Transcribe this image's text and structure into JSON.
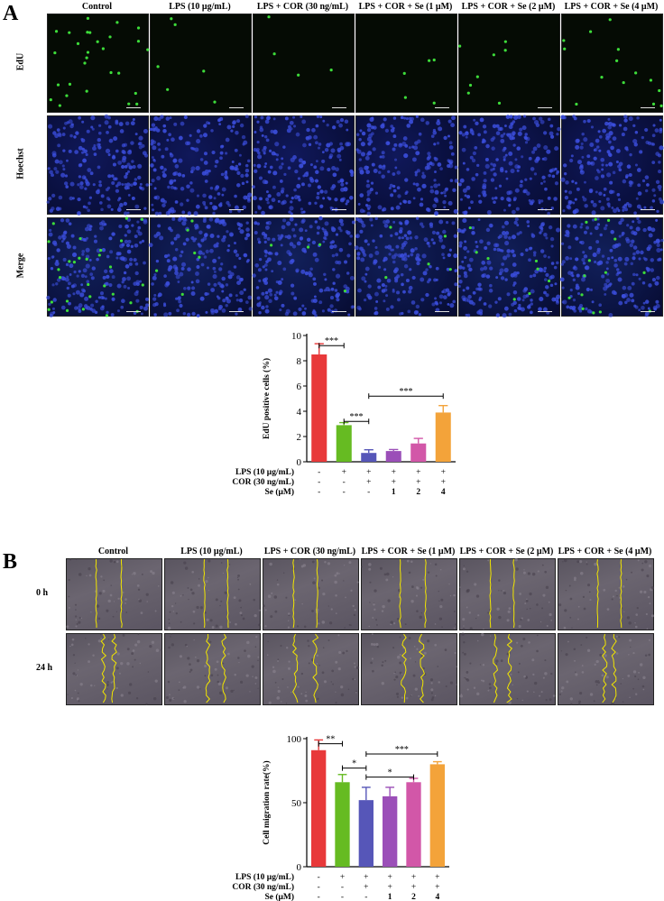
{
  "panel_a": {
    "letter": "A",
    "columns": [
      "Control",
      "LPS (10 μg/mL)",
      "LPS + COR (30 ng/mL)",
      "LPS + COR + Se (1 μM)",
      "LPS + COR + Se (2 μM)",
      "LPS + COR + Se (4 μM)"
    ],
    "rows": [
      "EdU",
      "Hoechst",
      "Merge"
    ],
    "colors": {
      "edu_dot": "#3ddc3a",
      "nuclei": "#3c4fe0"
    }
  },
  "panel_b": {
    "letter": "B",
    "columns": [
      "Control",
      "LPS (10 μg/mL)",
      "LPS + COR (30 ng/mL)",
      "LPS + COR + Se (1 μM)",
      "LPS + COR + Se (2 μM)",
      "LPS + COR + Se (4 μM)"
    ],
    "rows": [
      "0 h",
      "24 h"
    ],
    "colors": {
      "wound_edge": "#f2e600"
    }
  },
  "treatment_labels": [
    "LPS (10 μg/mL)",
    "COR (30 ng/mL)",
    "Se (μM)"
  ],
  "treatment_matrix": [
    [
      "-",
      "+",
      "+",
      "+",
      "+",
      "+"
    ],
    [
      "-",
      "-",
      "+",
      "+",
      "+",
      "+"
    ],
    [
      "-",
      "-",
      "-",
      "1",
      "2",
      "4"
    ]
  ],
  "chart_data": [
    {
      "type": "bar",
      "ylabel": "EdU positive cells (%)",
      "ylim": [
        0,
        10
      ],
      "yticks": [
        0,
        2,
        4,
        6,
        8,
        10
      ],
      "values": [
        8.5,
        2.9,
        0.7,
        0.85,
        1.45,
        3.9
      ],
      "errors": [
        0.85,
        0.2,
        0.25,
        0.12,
        0.4,
        0.55
      ],
      "colors": [
        "#e8393a",
        "#66bb22",
        "#5656b8",
        "#9b4fb8",
        "#d257a8",
        "#f3a33a"
      ],
      "significance": [
        {
          "from": 0,
          "to": 1,
          "label": "***",
          "y": 9.2
        },
        {
          "from": 1,
          "to": 2,
          "label": "***",
          "y": 3.2
        },
        {
          "from": 2,
          "to": 5,
          "label": "***",
          "y": 5.2
        }
      ]
    },
    {
      "type": "bar",
      "ylabel": "Cell migration rate(%)",
      "ylim": [
        0,
        100
      ],
      "yticks": [
        0,
        50,
        100
      ],
      "values": [
        91,
        66,
        52,
        55,
        66,
        80
      ],
      "errors": [
        8,
        6,
        10,
        7,
        3,
        2
      ],
      "colors": [
        "#e8393a",
        "#66bb22",
        "#5656b8",
        "#9b4fb8",
        "#d257a8",
        "#f3a33a"
      ],
      "significance": [
        {
          "from": 0,
          "to": 1,
          "label": "**",
          "y": 96
        },
        {
          "from": 1,
          "to": 2,
          "label": "*",
          "y": 77
        },
        {
          "from": 2,
          "to": 4,
          "label": "*",
          "y": 70
        },
        {
          "from": 2,
          "to": 5,
          "label": "***",
          "y": 88
        }
      ]
    }
  ]
}
